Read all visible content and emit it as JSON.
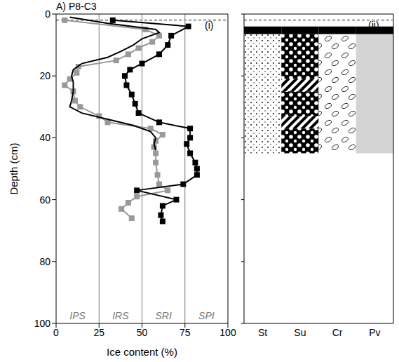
{
  "chart_data": [
    {
      "type": "line",
      "title": "A) P8-C3",
      "panel_label": "(i)",
      "xlabel": "Ice content (%)",
      "ylabel": "Depth (cm)",
      "xlim": [
        0,
        100
      ],
      "xticks": [
        0,
        25,
        50,
        75,
        100
      ],
      "ylim": [
        0,
        100
      ],
      "yticks": [
        0,
        20,
        40,
        60,
        80,
        100
      ],
      "hline": 2,
      "zones": [
        {
          "label": "IPS",
          "from": 0,
          "to": 25
        },
        {
          "label": "IRS",
          "from": 25,
          "to": 50
        },
        {
          "label": "SRI",
          "from": 50,
          "to": 75
        },
        {
          "label": "SPI",
          "from": 75,
          "to": 100
        }
      ],
      "series": [
        {
          "color": "#999999",
          "marker": "square",
          "line_style": "solid",
          "x": [
            5,
            52,
            60,
            56,
            48,
            42,
            35,
            13,
            12,
            8,
            5,
            10,
            11,
            14,
            25,
            30,
            55,
            62,
            58,
            57,
            58,
            58,
            59,
            60,
            65,
            47,
            42,
            38,
            44
          ],
          "y": [
            2,
            5,
            7,
            9,
            11,
            13,
            15,
            17,
            19,
            21,
            23,
            25,
            28,
            30,
            33,
            35,
            37,
            39,
            41,
            43,
            45,
            48,
            52,
            55,
            57,
            59,
            61,
            63,
            66
          ]
        },
        {
          "color": "#000000",
          "marker": "square",
          "line_style": "solid",
          "x": [
            33,
            77,
            67,
            65,
            60,
            50,
            43,
            40,
            41,
            44,
            46,
            48,
            60,
            78,
            78,
            76,
            78,
            81,
            82,
            82,
            74,
            47,
            70,
            62,
            61,
            62
          ],
          "y": [
            2,
            4,
            7,
            10,
            13,
            16,
            18,
            20,
            23,
            26,
            29,
            32,
            35,
            37,
            40,
            42,
            45,
            48,
            50,
            52,
            55,
            57,
            60,
            62,
            65,
            67
          ]
        },
        {
          "color": "#000000",
          "marker": "none",
          "line_style": "solid",
          "x": [
            8,
            30,
            58,
            60,
            50,
            45,
            38,
            30,
            15,
            10,
            9,
            10,
            10,
            9,
            8,
            15,
            30,
            45,
            55,
            58,
            57,
            58
          ],
          "y": [
            1,
            3,
            5,
            6,
            8,
            10,
            12,
            14,
            16,
            18,
            20,
            22,
            25,
            28,
            30,
            32,
            34,
            36,
            38,
            40,
            42,
            44
          ]
        }
      ]
    },
    {
      "type": "strata",
      "panel_label": "(ii)",
      "categories": [
        "St",
        "Su",
        "Cr",
        "Pv"
      ],
      "ylim": [
        0,
        100
      ],
      "yticks": [
        0,
        20,
        40,
        60,
        80,
        100
      ],
      "tick_labels": "x",
      "hline": 2,
      "layers": [
        {
          "category": "St",
          "from": 4,
          "to": 6.5,
          "fill": "solid"
        },
        {
          "category": "Su",
          "from": 4,
          "to": 6.5,
          "fill": "solid"
        },
        {
          "category": "Cr",
          "from": 4,
          "to": 6.5,
          "fill": "solid"
        },
        {
          "category": "Pv",
          "from": 4,
          "to": 6.5,
          "fill": "solid"
        },
        {
          "category": "St",
          "from": 6.5,
          "to": 45,
          "fill": "stipple"
        },
        {
          "category": "Su",
          "from": 6.5,
          "to": 21,
          "fill": "circles"
        },
        {
          "category": "Su",
          "from": 21,
          "to": 25,
          "fill": "hatch"
        },
        {
          "category": "Su",
          "from": 25,
          "to": 33,
          "fill": "circles"
        },
        {
          "category": "Su",
          "from": 33,
          "to": 37,
          "fill": "hatch"
        },
        {
          "category": "Su",
          "from": 37,
          "to": 45,
          "fill": "circles"
        },
        {
          "category": "Cr",
          "from": 6.5,
          "to": 45,
          "fill": "ovals"
        },
        {
          "category": "Pv",
          "from": 6.5,
          "to": 45,
          "fill": "gray"
        }
      ]
    }
  ]
}
